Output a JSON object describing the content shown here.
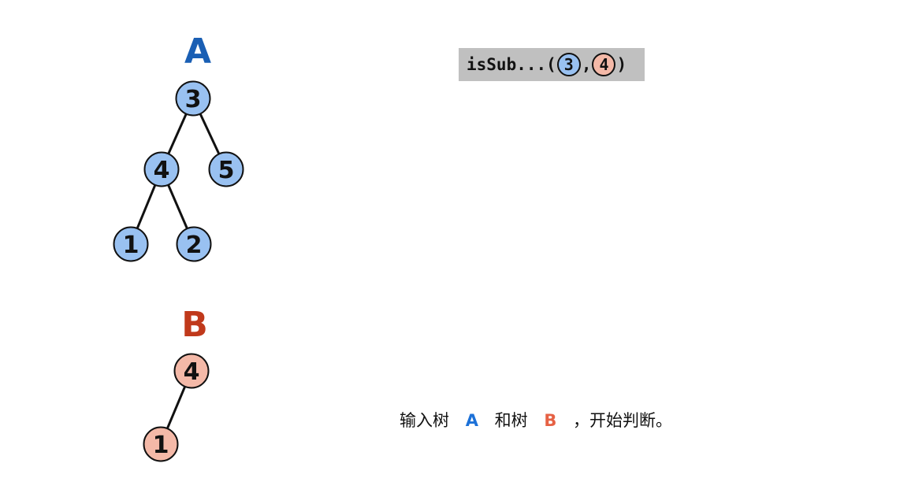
{
  "tree_a": {
    "title": "A",
    "title_color": "#1a5fb4",
    "node_fill": "#99c1f1",
    "nodes": [
      {
        "id": "a3",
        "label": "3"
      },
      {
        "id": "a4",
        "label": "4"
      },
      {
        "id": "a5",
        "label": "5"
      },
      {
        "id": "a1",
        "label": "1"
      },
      {
        "id": "a2",
        "label": "2"
      }
    ],
    "edges": [
      [
        "a3",
        "a4"
      ],
      [
        "a3",
        "a5"
      ],
      [
        "a4",
        "a1"
      ],
      [
        "a4",
        "a2"
      ]
    ]
  },
  "tree_b": {
    "title": "B",
    "title_color": "#c0391b",
    "node_fill": "#f4b9a8",
    "nodes": [
      {
        "id": "b4",
        "label": "4"
      },
      {
        "id": "b1",
        "label": "1"
      }
    ],
    "edges": [
      [
        "b4",
        "b1"
      ]
    ]
  },
  "call": {
    "func": "isSub...",
    "open": "(",
    "arg_a": "3",
    "sep": ",",
    "arg_b": "4",
    "close": ")"
  },
  "caption": {
    "part1": "输入树",
    "tag_a": "A",
    "tag_a_color": "#1c71d8",
    "part2": "和树",
    "tag_b": "B",
    "tag_b_color": "#e66144",
    "part3": "，开始判断。"
  }
}
